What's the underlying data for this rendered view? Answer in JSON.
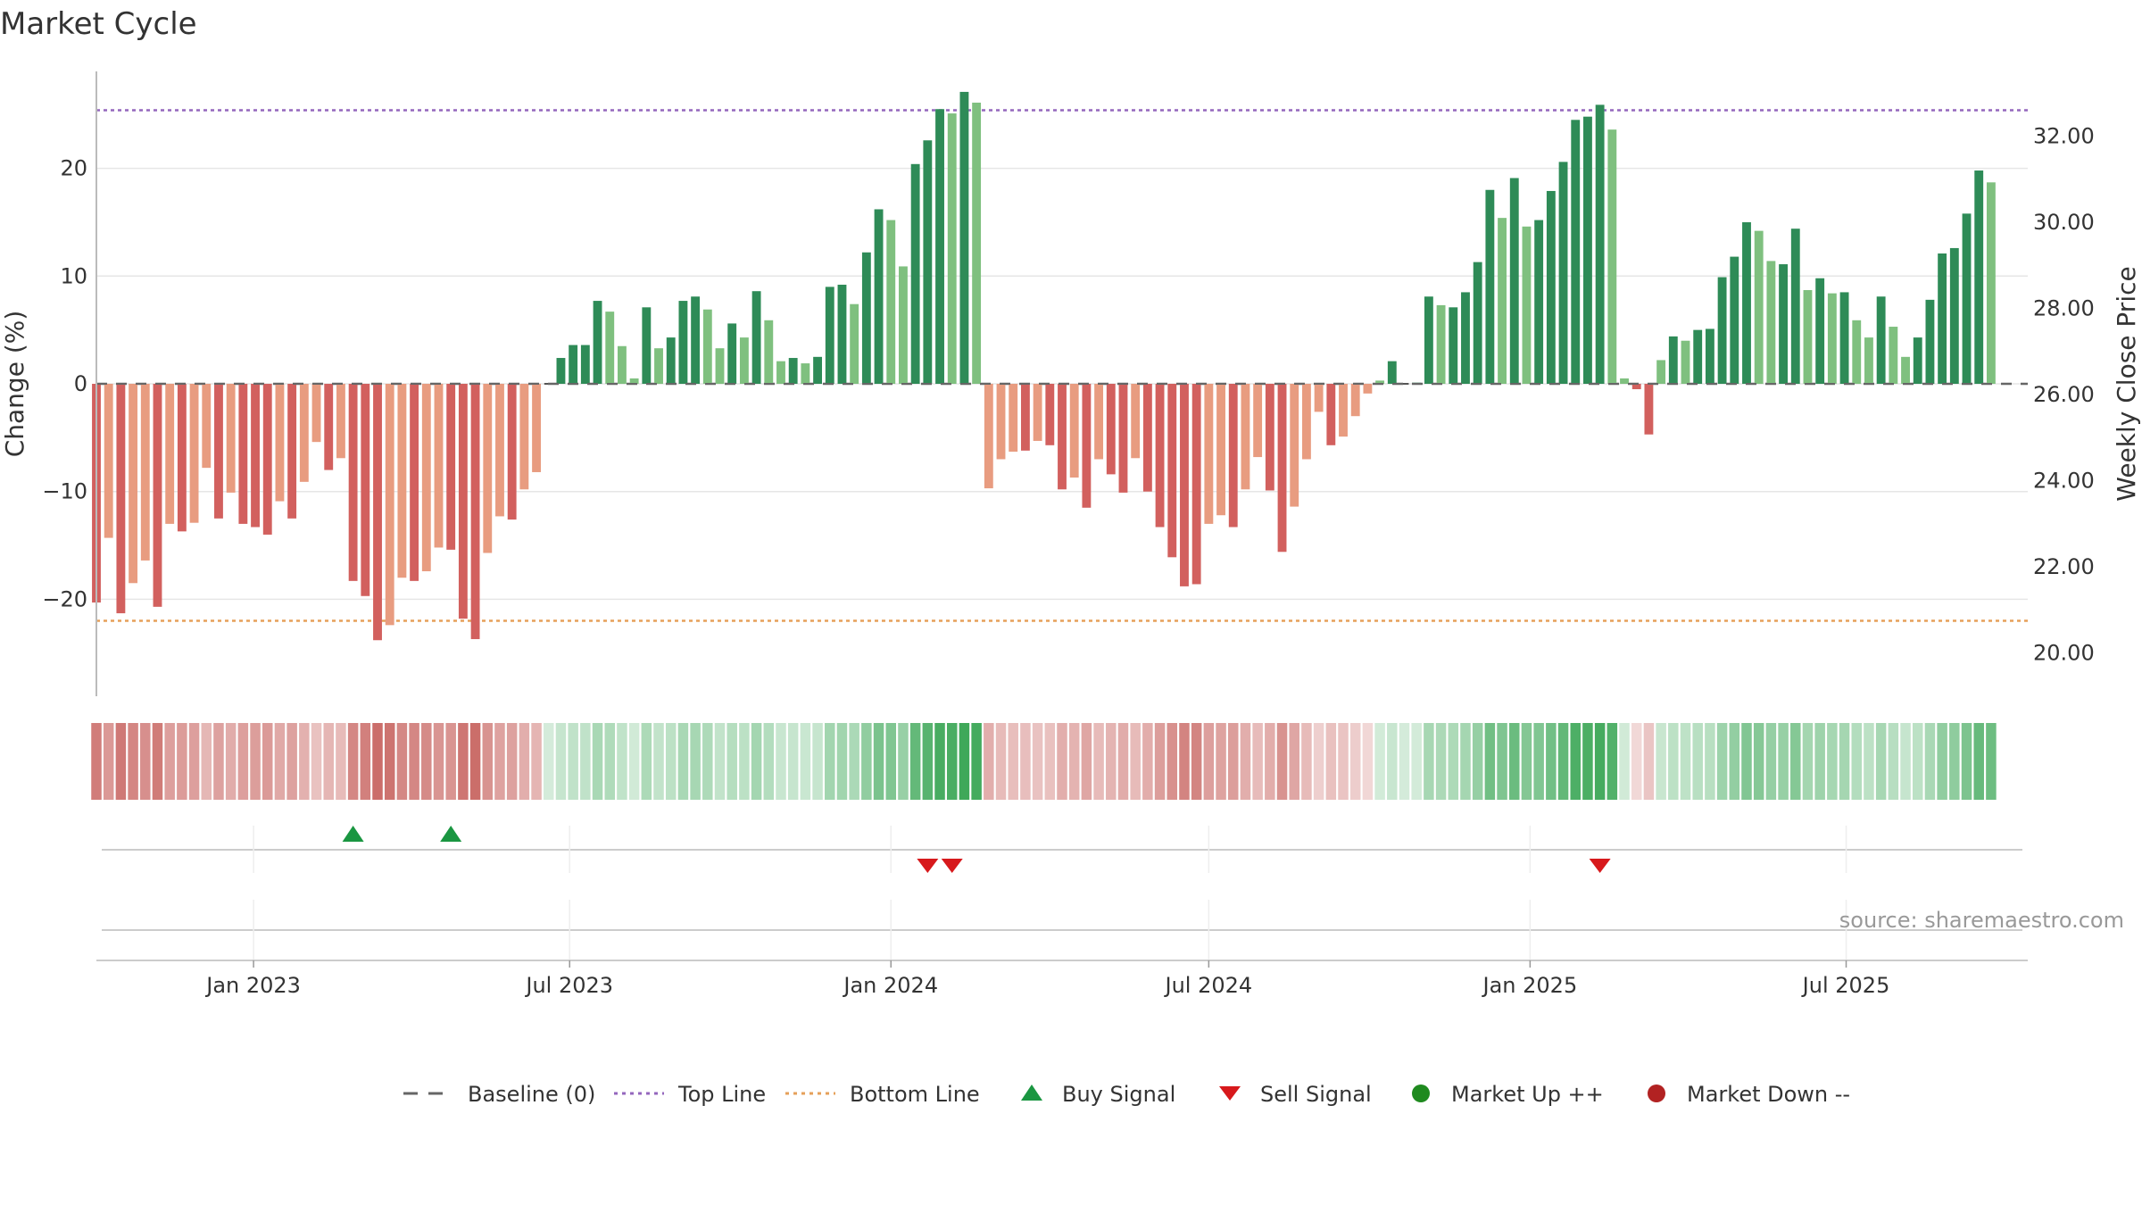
{
  "chart_data": {
    "type": "bar",
    "title": "Market Cycle",
    "ylabel": "Change (%)",
    "y2label": "Weekly Close Price",
    "ylim": [
      -29,
      29
    ],
    "y2lim": [
      19.0,
      33.5
    ],
    "yticks": [
      -20,
      -10,
      0,
      10,
      20
    ],
    "yticks_labels": [
      "−20",
      "−10",
      "0",
      "10",
      "20"
    ],
    "y2ticks": [
      20,
      22,
      24,
      26,
      28,
      30,
      32
    ],
    "y2ticks_labels": [
      "20.00",
      "22.00",
      "24.00",
      "26.00",
      "28.00",
      "30.00",
      "32.00"
    ],
    "xlim": [
      "2022-10-03",
      "2025-10-13"
    ],
    "xticks": [
      {
        "date": "2023-01-01",
        "label": "Jan 2023"
      },
      {
        "date": "2023-07-01",
        "label": "Jul 2023"
      },
      {
        "date": "2024-01-01",
        "label": "Jan 2024"
      },
      {
        "date": "2024-07-01",
        "label": "Jul 2024"
      },
      {
        "date": "2025-01-01",
        "label": "Jan 2025"
      },
      {
        "date": "2025-07-01",
        "label": "Jul 2025"
      }
    ],
    "start_date": "2022-10-03",
    "interval_days": 7,
    "values": [
      -20.3,
      -14.3,
      -21.3,
      -18.5,
      -16.4,
      -20.7,
      -13.0,
      -13.7,
      -12.9,
      -7.8,
      -12.5,
      -10.1,
      -13.0,
      -13.3,
      -14.0,
      -10.9,
      -12.5,
      -9.1,
      -5.4,
      -8.0,
      -6.9,
      -18.3,
      -19.7,
      -23.8,
      -22.4,
      -18.0,
      -18.3,
      -17.4,
      -15.2,
      -15.4,
      -21.8,
      -23.7,
      -15.7,
      -12.3,
      -12.6,
      -9.8,
      -8.2,
      0.0,
      2.4,
      3.6,
      3.6,
      7.7,
      6.7,
      3.5,
      0.5,
      7.1,
      3.3,
      4.3,
      7.7,
      8.1,
      6.9,
      3.3,
      5.6,
      4.3,
      8.6,
      5.9,
      2.1,
      2.4,
      1.9,
      2.5,
      9.0,
      9.2,
      7.4,
      12.2,
      16.2,
      15.2,
      10.9,
      20.4,
      22.6,
      25.5,
      25.1,
      27.1,
      26.1,
      -9.7,
      -7.0,
      -6.3,
      -6.2,
      -5.3,
      -5.7,
      -9.8,
      -8.7,
      -11.5,
      -7.0,
      -8.4,
      -10.1,
      -6.9,
      -10.0,
      -13.3,
      -16.1,
      -18.8,
      -18.6,
      -13.0,
      -12.2,
      -13.3,
      -9.8,
      -6.8,
      -9.9,
      -15.6,
      -11.4,
      -7.0,
      -2.6,
      -5.7,
      -4.9,
      -3.0,
      -0.9,
      0.3,
      2.1,
      0.0,
      0.1,
      8.1,
      7.3,
      7.1,
      8.5,
      11.3,
      18.0,
      15.4,
      19.1,
      14.6,
      15.2,
      17.9,
      20.6,
      24.5,
      24.8,
      25.9,
      23.6,
      0.5,
      -0.5,
      -4.7,
      2.2,
      4.4,
      4.0,
      5.0,
      5.1,
      9.9,
      11.8,
      15.0,
      14.2,
      11.4,
      11.1,
      14.4,
      8.7,
      9.8,
      8.4,
      8.5,
      5.9,
      4.3,
      8.1,
      5.3,
      2.5,
      4.3,
      7.8,
      12.1,
      12.6,
      15.8,
      19.8,
      18.7
    ],
    "reference_lines": [
      {
        "name": "Baseline (0)",
        "value": 0,
        "color": "#666666",
        "style": "dashed"
      },
      {
        "name": "Top Line",
        "value": 25.4,
        "color": "#9467bd",
        "style": "dotted"
      },
      {
        "name": "Bottom Line",
        "value": -22.0,
        "color": "#e6a05a",
        "style": "dotted"
      }
    ],
    "buy_signals": [
      "2023-02-27",
      "2023-04-24"
    ],
    "sell_signals": [
      "2024-01-22",
      "2024-02-05",
      "2025-02-10"
    ],
    "market_up_signals": [],
    "market_down_signals": [],
    "legend": [
      {
        "name": "Baseline (0)",
        "symbol": "dash",
        "color": "#666666"
      },
      {
        "name": "Top Line",
        "symbol": "dot",
        "color": "#9467bd"
      },
      {
        "name": "Bottom Line",
        "symbol": "dot",
        "color": "#e6a05a"
      },
      {
        "name": "Buy Signal",
        "symbol": "triangle-up",
        "color": "#1a9641"
      },
      {
        "name": "Sell Signal",
        "symbol": "triangle-down",
        "color": "#d7191c"
      },
      {
        "name": "Market Up ++",
        "symbol": "circle",
        "color": "#1f8a1f"
      },
      {
        "name": "Market Down --",
        "symbol": "circle",
        "color": "#b22222"
      }
    ],
    "legend_position": "bottom",
    "grid": true,
    "colors": {
      "up_strong": "#2e8b57",
      "up_weak": "#7fc07f",
      "down_strong": "#d2605e",
      "down_weak": "#e89c80",
      "strip_up": "#3aa655",
      "strip_down": "#c45a56"
    }
  },
  "source": "source: sharemaestro.com"
}
